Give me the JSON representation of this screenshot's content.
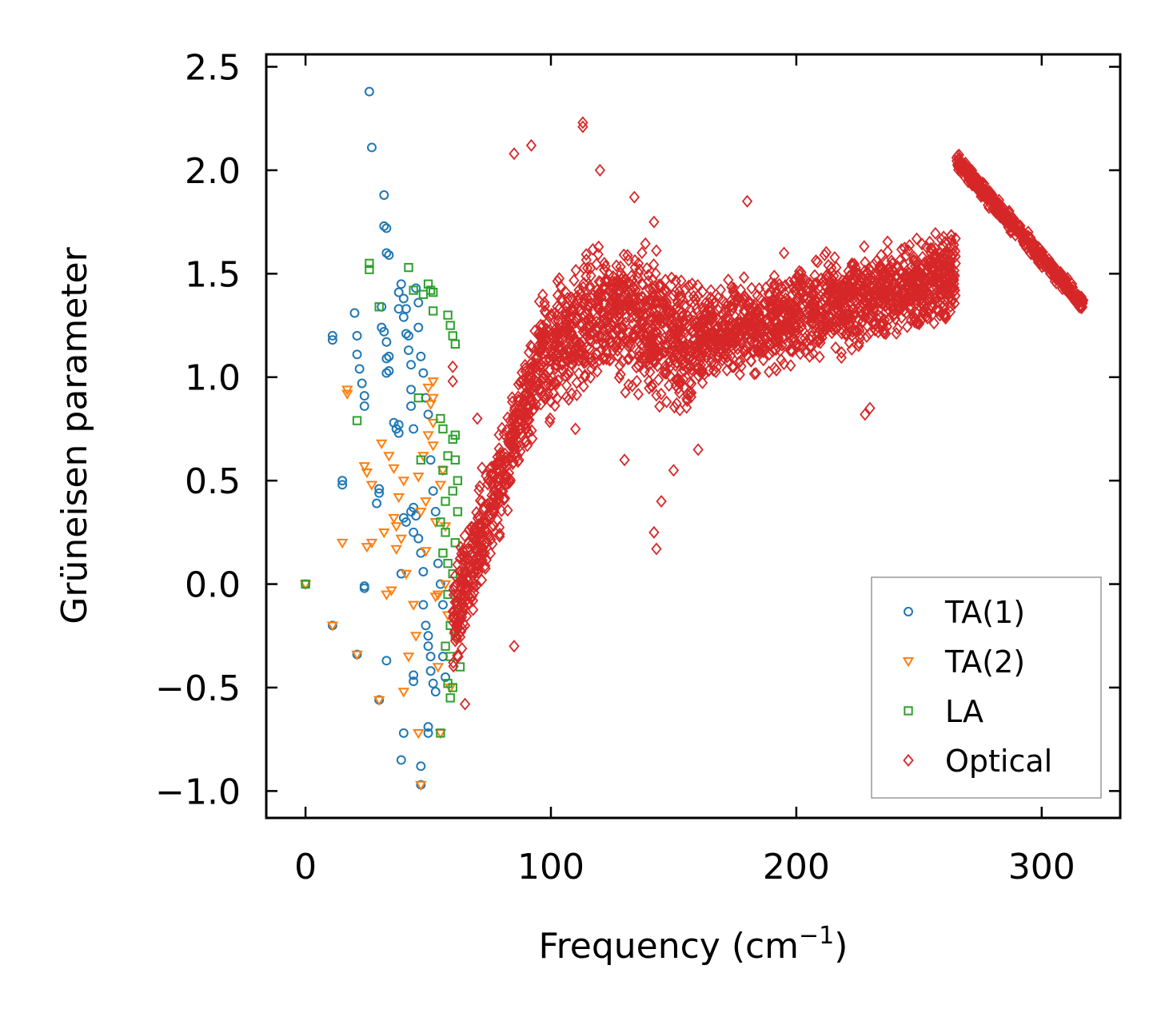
{
  "chart_data": {
    "type": "scatter",
    "title": "",
    "xlabel": "Frequency (cm",
    "xlabel_sup": "−1",
    "xlabel_end": ")",
    "ylabel": "Grüneisen parameter",
    "xlim": [
      -16,
      332
    ],
    "ylim": [
      -1.13,
      2.56
    ],
    "xticks": [
      0,
      100,
      200,
      300
    ],
    "xtick_labels": [
      "0",
      "100",
      "200",
      "300"
    ],
    "yticks": [
      -1.0,
      -0.5,
      0.0,
      0.5,
      1.0,
      1.5,
      2.0,
      2.5
    ],
    "ytick_labels": [
      "−1.0",
      "−0.5",
      "0.0",
      "0.5",
      "1.0",
      "1.5",
      "2.0",
      "2.5"
    ],
    "grid": false,
    "legend_position": "lower-right",
    "series": [
      {
        "name": "TA(1)",
        "marker": "circle",
        "color": "#1f77b4",
        "points": [
          [
            0,
            0.0
          ],
          [
            11,
            -0.2
          ],
          [
            11,
            1.2
          ],
          [
            11,
            1.18
          ],
          [
            15,
            0.5
          ],
          [
            15,
            0.48
          ],
          [
            20,
            1.31
          ],
          [
            21,
            -0.34
          ],
          [
            21,
            1.2
          ],
          [
            21,
            1.11
          ],
          [
            22,
            1.04
          ],
          [
            23,
            0.97
          ],
          [
            24,
            0.91
          ],
          [
            24,
            0.86
          ],
          [
            24,
            -0.01
          ],
          [
            24,
            -0.02
          ],
          [
            26,
            2.38
          ],
          [
            27,
            2.11
          ],
          [
            29,
            0.39
          ],
          [
            30,
            0.46
          ],
          [
            30,
            0.44
          ],
          [
            31,
            1.34
          ],
          [
            31,
            1.24
          ],
          [
            30,
            -0.56
          ],
          [
            32,
            1.88
          ],
          [
            32,
            1.73
          ],
          [
            33,
            1.72
          ],
          [
            33,
            1.6
          ],
          [
            34,
            1.59
          ],
          [
            33,
            -0.37
          ],
          [
            32,
            1.22
          ],
          [
            33,
            1.17
          ],
          [
            33,
            1.09
          ],
          [
            34,
            1.1
          ],
          [
            33,
            1.02
          ],
          [
            34,
            1.03
          ],
          [
            36,
            0.78
          ],
          [
            37,
            0.75
          ],
          [
            38,
            0.73
          ],
          [
            38,
            0.77
          ],
          [
            38,
            1.33
          ],
          [
            38,
            1.41
          ],
          [
            39,
            1.45
          ],
          [
            40,
            1.38
          ],
          [
            40,
            1.29
          ],
          [
            41,
            1.21
          ],
          [
            41,
            1.33
          ],
          [
            42,
            1.2
          ],
          [
            42,
            1.13
          ],
          [
            43,
            1.06
          ],
          [
            43,
            0.94
          ],
          [
            43,
            0.86
          ],
          [
            44,
            0.75
          ],
          [
            40,
            -0.72
          ],
          [
            39,
            -0.85
          ],
          [
            39,
            0.05
          ],
          [
            40,
            0.32
          ],
          [
            41,
            0.3
          ],
          [
            43,
            0.35
          ],
          [
            44,
            0.37
          ],
          [
            44,
            0.25
          ],
          [
            45,
            0.33
          ],
          [
            46,
            0.22
          ],
          [
            47,
            0.15
          ],
          [
            48,
            0.06
          ],
          [
            47,
            -0.88
          ],
          [
            47,
            -0.97
          ],
          [
            48,
            -0.1
          ],
          [
            49,
            -0.2
          ],
          [
            50,
            -0.25
          ],
          [
            50,
            -0.3
          ],
          [
            51,
            -0.35
          ],
          [
            51,
            -0.42
          ],
          [
            52,
            -0.48
          ],
          [
            53,
            -0.52
          ],
          [
            50,
            -0.69
          ],
          [
            50,
            -0.72
          ],
          [
            44,
            -0.44
          ],
          [
            44,
            -0.47
          ],
          [
            45,
            1.43
          ],
          [
            46,
            1.36
          ],
          [
            46,
            1.24
          ],
          [
            47,
            1.1
          ],
          [
            48,
            1.02
          ],
          [
            49,
            0.9
          ],
          [
            50,
            0.82
          ],
          [
            51,
            0.6
          ],
          [
            52,
            0.45
          ],
          [
            53,
            0.35
          ],
          [
            54,
            0.1
          ],
          [
            55,
            0.0
          ],
          [
            56,
            -0.1
          ],
          [
            56,
            -0.35
          ],
          [
            57,
            -0.45
          ]
        ]
      },
      {
        "name": "TA(2)",
        "marker": "triangle-down",
        "color": "#ff7f0e",
        "points": [
          [
            0,
            0.0
          ],
          [
            11,
            -0.2
          ],
          [
            15,
            0.2
          ],
          [
            17,
            0.94
          ],
          [
            17,
            0.92
          ],
          [
            21,
            -0.34
          ],
          [
            24,
            0.57
          ],
          [
            25,
            0.54
          ],
          [
            25,
            0.18
          ],
          [
            27,
            0.2
          ],
          [
            27,
            0.48
          ],
          [
            30,
            -0.56
          ],
          [
            31,
            0.68
          ],
          [
            32,
            0.25
          ],
          [
            33,
            -0.05
          ],
          [
            34,
            0.62
          ],
          [
            35,
            -0.03
          ],
          [
            36,
            0.56
          ],
          [
            36,
            0.32
          ],
          [
            37,
            0.28
          ],
          [
            37,
            0.17
          ],
          [
            38,
            0.42
          ],
          [
            39,
            0.22
          ],
          [
            40,
            0.5
          ],
          [
            40,
            -0.52
          ],
          [
            41,
            0.05
          ],
          [
            42,
            -0.35
          ],
          [
            44,
            -0.1
          ],
          [
            45,
            -0.25
          ],
          [
            46,
            0.52
          ],
          [
            46,
            -0.72
          ],
          [
            47,
            -0.97
          ],
          [
            47,
            0.35
          ],
          [
            48,
            0.62
          ],
          [
            49,
            0.4
          ],
          [
            49,
            0.16
          ],
          [
            50,
            0.72
          ],
          [
            50,
            0.95
          ],
          [
            51,
            0.87
          ],
          [
            52,
            0.78
          ],
          [
            52,
            0.67
          ],
          [
            53,
            0.3
          ],
          [
            54,
            -0.4
          ],
          [
            54,
            -0.05
          ],
          [
            55,
            0.48
          ],
          [
            56,
            0.55
          ],
          [
            57,
            0.28
          ],
          [
            57,
            0.0
          ],
          [
            58,
            -0.15
          ],
          [
            59,
            -0.5
          ],
          [
            55,
            -0.72
          ],
          [
            53,
            -0.06
          ],
          [
            52,
            0.98
          ],
          [
            52,
            0.9
          ]
        ]
      },
      {
        "name": "LA",
        "marker": "square",
        "color": "#2ca02c",
        "points": [
          [
            0,
            0.0
          ],
          [
            21,
            0.79
          ],
          [
            26,
            1.55
          ],
          [
            26,
            1.52
          ],
          [
            30,
            1.34
          ],
          [
            42,
            1.53
          ],
          [
            44,
            1.42
          ],
          [
            46,
            0.9
          ],
          [
            47,
            0.6
          ],
          [
            48,
            1.4
          ],
          [
            50,
            1.45
          ],
          [
            51,
            1.42
          ],
          [
            52,
            1.41
          ],
          [
            52,
            1.32
          ],
          [
            55,
            0.8
          ],
          [
            56,
            0.75
          ],
          [
            56,
            0.55
          ],
          [
            57,
            0.4
          ],
          [
            57,
            0.25
          ],
          [
            58,
            0.1
          ],
          [
            58,
            -0.05
          ],
          [
            59,
            -0.2
          ],
          [
            59,
            -0.35
          ],
          [
            60,
            -0.5
          ],
          [
            58,
            1.3
          ],
          [
            59,
            1.25
          ],
          [
            60,
            1.2
          ],
          [
            61,
            1.16
          ],
          [
            60,
            0.7
          ],
          [
            61,
            0.6
          ],
          [
            62,
            0.5
          ],
          [
            62,
            0.35
          ],
          [
            61,
            0.2
          ],
          [
            60,
            0.05
          ],
          [
            59,
            -0.55
          ],
          [
            58,
            -0.48
          ],
          [
            61,
            -0.25
          ],
          [
            62,
            -0.1
          ],
          [
            63,
            -0.4
          ],
          [
            55,
            0.3
          ],
          [
            56,
            0.15
          ],
          [
            57,
            -0.3
          ],
          [
            55,
            -0.72
          ],
          [
            58,
            0.62
          ],
          [
            60,
            0.45
          ],
          [
            61,
            0.72
          ]
        ]
      },
      {
        "name": "Optical",
        "marker": "diamond",
        "color": "#d62728",
        "generator": "dense",
        "extra_points": [
          [
            113,
            2.23
          ],
          [
            113,
            2.21
          ],
          [
            120,
            2.0
          ],
          [
            134,
            1.87
          ],
          [
            142,
            1.75
          ],
          [
            180,
            1.85
          ],
          [
            195,
            1.6
          ],
          [
            215,
            1.45
          ],
          [
            225,
            1.5
          ],
          [
            230,
            0.85
          ],
          [
            228,
            0.82
          ],
          [
            145,
            0.4
          ],
          [
            142,
            0.25
          ],
          [
            143,
            0.17
          ],
          [
            85,
            -0.3
          ],
          [
            65,
            -0.58
          ],
          [
            60,
            1.05
          ],
          [
            60,
            0.98
          ],
          [
            70,
            0.8
          ],
          [
            85,
            2.08
          ],
          [
            92,
            2.12
          ],
          [
            110,
            0.75
          ],
          [
            130,
            0.6
          ],
          [
            150,
            0.55
          ],
          [
            160,
            0.65
          ]
        ]
      }
    ]
  }
}
